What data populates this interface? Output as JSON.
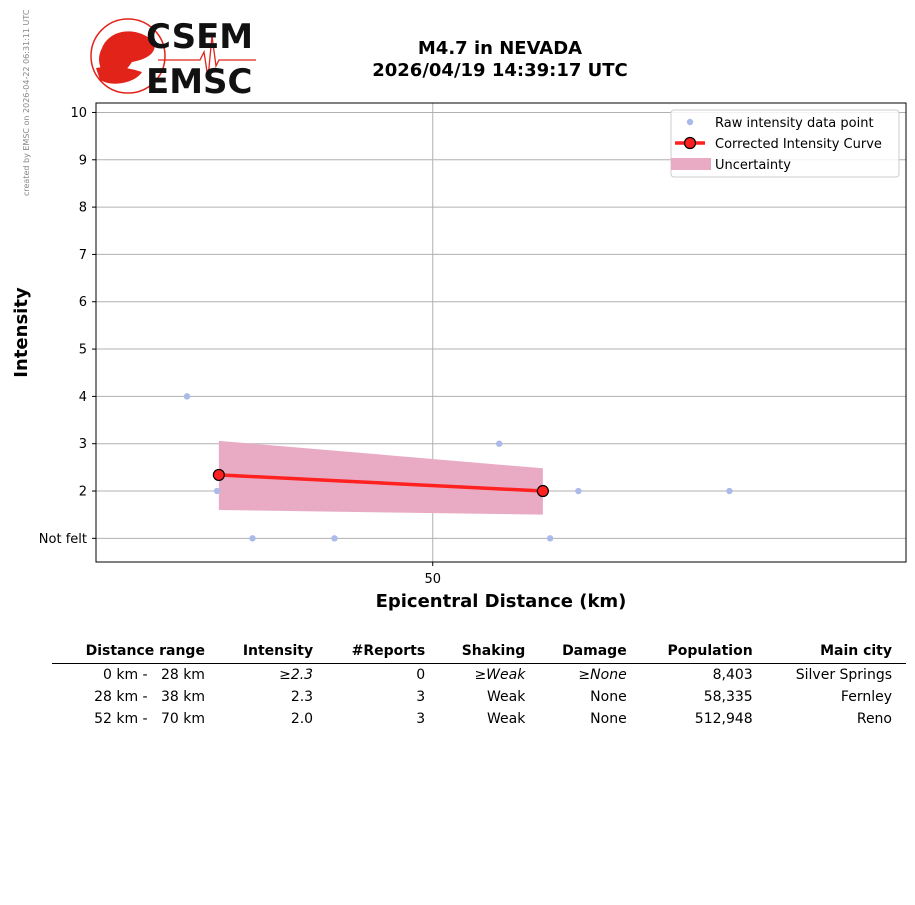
{
  "stamp": "created by EMSC on 2026-04-22 06:31:11 UTC",
  "logo": {
    "top_text": "CSEM",
    "bottom_text": "EMSC",
    "color": "#e2231a"
  },
  "title_line1": "M4.7 in NEVADA",
  "title_line2": "2026/04/19 14:39:17 UTC",
  "chart_data": {
    "type": "line",
    "xlabel": "Epicentral Distance (km)",
    "ylabel": "Intensity",
    "xlim": [
      13,
      102
    ],
    "ylim": [
      0.5,
      10.2
    ],
    "xticks": [
      50
    ],
    "yticks": [
      {
        "value": 1,
        "label": "Not felt"
      },
      {
        "value": 2,
        "label": "2"
      },
      {
        "value": 3,
        "label": "3"
      },
      {
        "value": 4,
        "label": "4"
      },
      {
        "value": 5,
        "label": "5"
      },
      {
        "value": 6,
        "label": "6"
      },
      {
        "value": 7,
        "label": "7"
      },
      {
        "value": 8,
        "label": "8"
      },
      {
        "value": 9,
        "label": "9"
      },
      {
        "value": 10,
        "label": "10"
      }
    ],
    "grid": true,
    "legend_position": "top-right",
    "legend": [
      "Raw intensity data point",
      "Corrected Intensity Curve",
      "Uncertainty"
    ],
    "colors": {
      "raw": "#aabbea",
      "curve": "#ff2020",
      "uncertainty": "#e8abc3",
      "grid": "#b0b0b0"
    },
    "raw_points": [
      {
        "x": 23,
        "y": 4
      },
      {
        "x": 26.3,
        "y": 2
      },
      {
        "x": 30.2,
        "y": 1
      },
      {
        "x": 39.2,
        "y": 1
      },
      {
        "x": 57.3,
        "y": 3
      },
      {
        "x": 62.9,
        "y": 1
      },
      {
        "x": 66,
        "y": 2
      },
      {
        "x": 82.6,
        "y": 2
      }
    ],
    "curve": [
      {
        "x": 26.5,
        "y": 2.34
      },
      {
        "x": 62.1,
        "y": 2.0
      }
    ],
    "uncertainty": {
      "x": [
        26.5,
        62.1
      ],
      "upper": [
        3.06,
        2.48
      ],
      "lower": [
        1.6,
        1.5
      ]
    }
  },
  "table": {
    "headers": [
      "Distance range",
      "Intensity",
      "#Reports",
      "Shaking",
      "Damage",
      "Population",
      "Main city"
    ],
    "rows": [
      [
        "0 km -   28 km",
        "≥2.3",
        "0",
        "≥Weak",
        "≥None",
        "8,403",
        "Silver Springs"
      ],
      [
        "28 km -   38 km",
        "2.3",
        "3",
        "Weak",
        "None",
        "58,335",
        "Fernley"
      ],
      [
        "52 km -   70 km",
        "2.0",
        "3",
        "Weak",
        "None",
        "512,948",
        "Reno"
      ]
    ]
  }
}
